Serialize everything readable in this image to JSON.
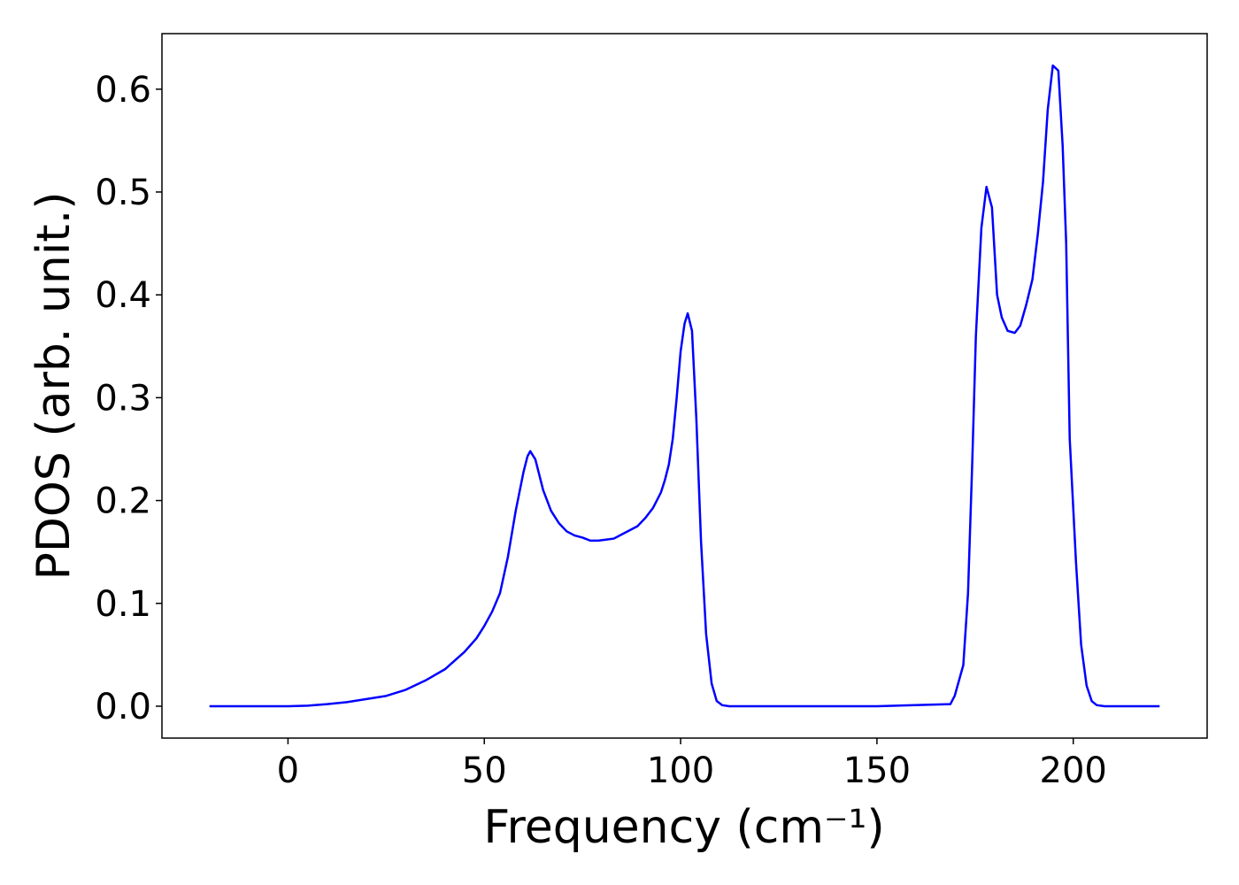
{
  "chart_data": {
    "type": "line",
    "xlabel": "Frequency (cm⁻¹)",
    "ylabel": "PDOS (arb. unit.)",
    "x": [
      -20,
      -10,
      0,
      5,
      10,
      15,
      20,
      25,
      30,
      35,
      40,
      45,
      48,
      50,
      52,
      54,
      56,
      58,
      60,
      61,
      61.7,
      63,
      65,
      67,
      69,
      71,
      73,
      75,
      77,
      79,
      81,
      83,
      85,
      87,
      89,
      91,
      93,
      95,
      96,
      97,
      98,
      99,
      100,
      101,
      101.8,
      102.9,
      104,
      105.2,
      106.5,
      107.9,
      109.2,
      110.6,
      112.4,
      150,
      168.7,
      169.8,
      172,
      173.2,
      174.3,
      175.2,
      176.6,
      177.9,
      179.3,
      180.6,
      181.8,
      183.3,
      185.1,
      186.5,
      188,
      189.6,
      191,
      192.3,
      193.5,
      194.8,
      196.2,
      197.3,
      198.2,
      199.1,
      200.7,
      202,
      203.4,
      204.7,
      206,
      208,
      222
    ],
    "series": [
      {
        "name": "PDOS",
        "color": "#0000ff",
        "values": [
          0,
          0,
          0,
          0.0005,
          0.002,
          0.004,
          0.007,
          0.01,
          0.016,
          0.025,
          0.036,
          0.053,
          0.066,
          0.078,
          0.092,
          0.11,
          0.145,
          0.19,
          0.228,
          0.243,
          0.248,
          0.24,
          0.21,
          0.19,
          0.178,
          0.17,
          0.166,
          0.164,
          0.161,
          0.161,
          0.162,
          0.163,
          0.167,
          0.171,
          0.175,
          0.183,
          0.193,
          0.208,
          0.22,
          0.235,
          0.26,
          0.3,
          0.345,
          0.372,
          0.382,
          0.365,
          0.28,
          0.16,
          0.07,
          0.022,
          0.005,
          0.001,
          0,
          0,
          0.002,
          0.01,
          0.04,
          0.11,
          0.24,
          0.36,
          0.465,
          0.505,
          0.485,
          0.4,
          0.378,
          0.365,
          0.363,
          0.37,
          0.39,
          0.415,
          0.46,
          0.51,
          0.58,
          0.623,
          0.618,
          0.545,
          0.45,
          0.26,
          0.14,
          0.06,
          0.02,
          0.005,
          0.001,
          0,
          0
        ]
      }
    ],
    "xlim": [
      -32.1,
      234.1
    ],
    "xticks": [
      0,
      50,
      100,
      150,
      200
    ],
    "ylim": [
      -0.031,
      0.654
    ],
    "yticks": [
      {
        "value": 0,
        "label": "0.0"
      },
      0.1,
      0.2,
      0.3,
      0.4,
      0.5,
      0.6
    ],
    "grid": false
  }
}
